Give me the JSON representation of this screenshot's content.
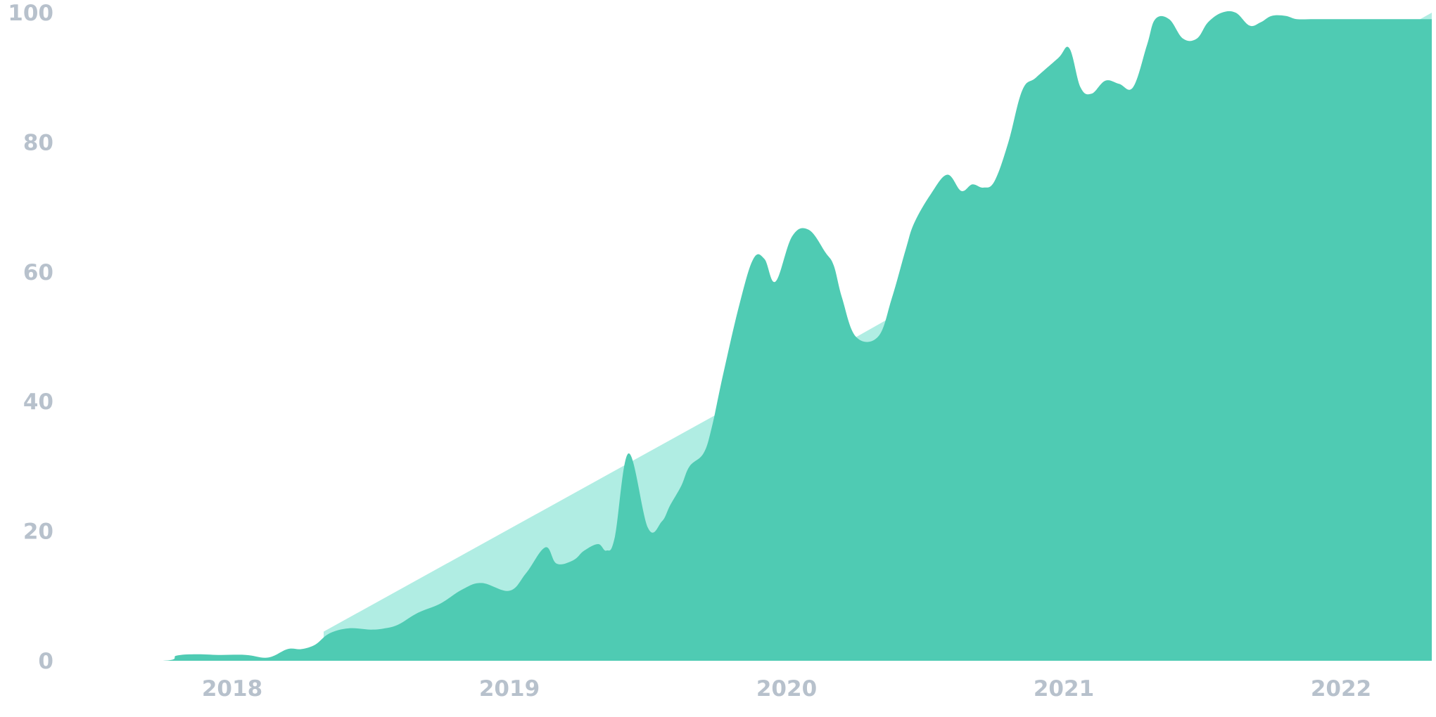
{
  "chart_data": {
    "type": "area",
    "x_ticks": [
      "2018",
      "2019",
      "2020",
      "2021",
      "2022"
    ],
    "y_ticks": [
      0,
      20,
      40,
      60,
      80,
      100
    ],
    "xlim": [
      2017.42,
      2022.33
    ],
    "ylim": [
      0,
      100
    ],
    "grid": false,
    "colors": {
      "trend": "#b0ede3",
      "series": "#4fcbb3",
      "tick_label": "#b7c1cc"
    },
    "series": [
      {
        "role": "trend",
        "x": [
          2018.33,
          2020.17,
          2021.0,
          2022.33
        ],
        "y": [
          4.5,
          48,
          68,
          100
        ]
      },
      {
        "role": "main",
        "x": [
          2017.42,
          2017.75,
          2017.8,
          2017.87,
          2017.95,
          2018.05,
          2018.13,
          2018.2,
          2018.25,
          2018.3,
          2018.35,
          2018.42,
          2018.5,
          2018.55,
          2018.6,
          2018.67,
          2018.75,
          2018.83,
          2018.9,
          2019.0,
          2019.06,
          2019.13,
          2019.17,
          2019.23,
          2019.27,
          2019.32,
          2019.35,
          2019.38,
          2019.43,
          2019.5,
          2019.55,
          2019.58,
          2019.62,
          2019.65,
          2019.7,
          2019.73,
          2019.77,
          2019.83,
          2019.88,
          2019.92,
          2019.96,
          2020.02,
          2020.08,
          2020.14,
          2020.17,
          2020.2,
          2020.25,
          2020.33,
          2020.38,
          2020.43,
          2020.46,
          2020.52,
          2020.58,
          2020.63,
          2020.67,
          2020.71,
          2020.75,
          2020.8,
          2020.85,
          2020.9,
          2020.98,
          2021.02,
          2021.06,
          2021.1,
          2021.15,
          2021.2,
          2021.25,
          2021.3,
          2021.33,
          2021.38,
          2021.43,
          2021.48,
          2021.52,
          2021.57,
          2021.62,
          2021.67,
          2021.71,
          2021.75,
          2021.8,
          2021.84,
          2021.9,
          2021.94,
          2021.98,
          2022.02,
          2022.06,
          2022.1,
          2022.14,
          2022.18,
          2022.23,
          2022.28,
          2022.33
        ],
        "y": [
          0,
          0,
          0.8,
          1.0,
          0.9,
          0.9,
          0.5,
          1.8,
          1.8,
          2.5,
          4.2,
          5.0,
          4.8,
          5.0,
          5.6,
          7.4,
          8.8,
          11,
          12,
          10.8,
          13.5,
          17.5,
          15,
          15.5,
          17,
          18,
          17,
          19,
          32,
          20.5,
          21.5,
          24,
          27,
          30,
          32,
          36,
          44,
          55,
          62,
          62,
          58.5,
          65.5,
          66.5,
          63,
          61,
          56,
          50,
          50,
          56,
          63.5,
          67.5,
          72,
          75,
          72.5,
          73.5,
          73,
          74,
          80,
          88,
          90,
          93,
          94.5,
          88.5,
          87.5,
          89.5,
          89,
          88.5,
          95,
          99,
          99,
          96,
          96,
          98.5,
          100,
          100,
          98,
          98.5,
          99.5,
          99.5,
          99,
          99,
          99,
          99,
          99,
          99,
          99,
          99,
          99,
          99,
          99,
          99
        ]
      }
    ]
  }
}
